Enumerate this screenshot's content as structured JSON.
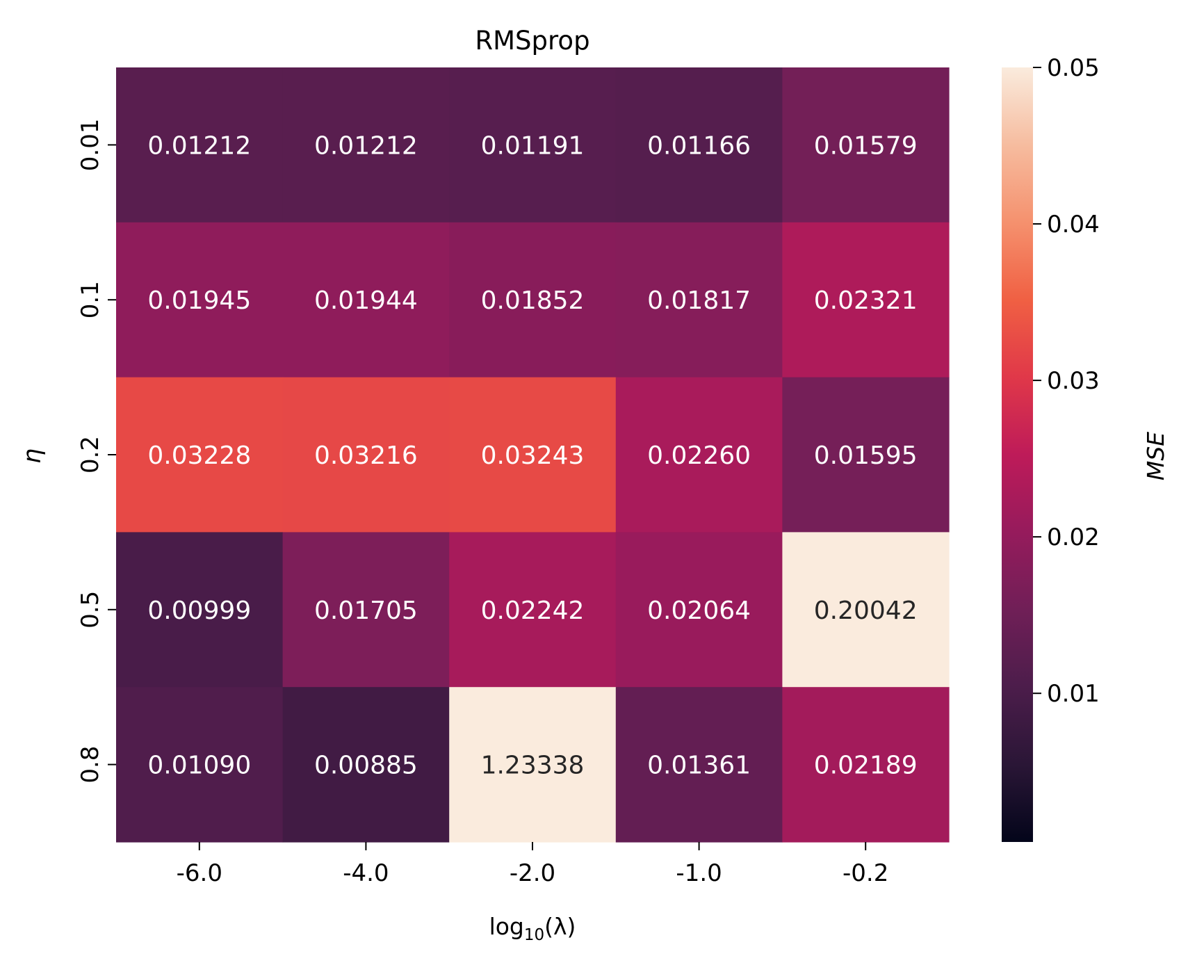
{
  "chart_data": {
    "type": "heatmap",
    "title": "RMSprop",
    "xlabel": "log10(λ)",
    "xlabel_parts": {
      "base": "log",
      "sub": "10",
      "arg": "(λ)"
    },
    "ylabel": "η",
    "x_categories": [
      "-6.0",
      "-4.0",
      "-2.0",
      "-1.0",
      "-0.2"
    ],
    "y_categories": [
      "0.01",
      "0.1",
      "0.2",
      "0.5",
      "0.8"
    ],
    "values": [
      [
        0.01212,
        0.01212,
        0.01191,
        0.01166,
        0.01579
      ],
      [
        0.01945,
        0.01944,
        0.01852,
        0.01817,
        0.02321
      ],
      [
        0.03228,
        0.03216,
        0.03243,
        0.0226,
        0.01595
      ],
      [
        0.00999,
        0.01705,
        0.02242,
        0.02064,
        0.20042
      ],
      [
        0.0109,
        0.00885,
        1.23338,
        0.01361,
        0.02189
      ]
    ],
    "cell_labels": [
      [
        "0.01212",
        "0.01212",
        "0.01191",
        "0.01166",
        "0.01579"
      ],
      [
        "0.01945",
        "0.01944",
        "0.01852",
        "0.01817",
        "0.02321"
      ],
      [
        "0.03228",
        "0.03216",
        "0.03243",
        "0.02260",
        "0.01595"
      ],
      [
        "0.00999",
        "0.01705",
        "0.02242",
        "0.02064",
        "0.20042"
      ],
      [
        "0.01090",
        "0.00885",
        "1.23338",
        "0.01361",
        "0.02189"
      ]
    ],
    "colorbar": {
      "label": "MSE",
      "vmin": 0.0005,
      "vmax": 0.05,
      "ticks": [
        0.01,
        0.02,
        0.03,
        0.04,
        0.05
      ],
      "tick_labels": [
        "0.01",
        "0.02",
        "0.03",
        "0.04",
        "0.05"
      ],
      "colormap": "rocket",
      "color_stops": [
        "#03051a",
        "#2a1636",
        "#4c1d4b",
        "#701f57",
        "#961b5c",
        "#be1b59",
        "#e03849",
        "#f06043",
        "#f5916e",
        "#f6bc9f",
        "#faebdd"
      ]
    },
    "grid": false
  }
}
